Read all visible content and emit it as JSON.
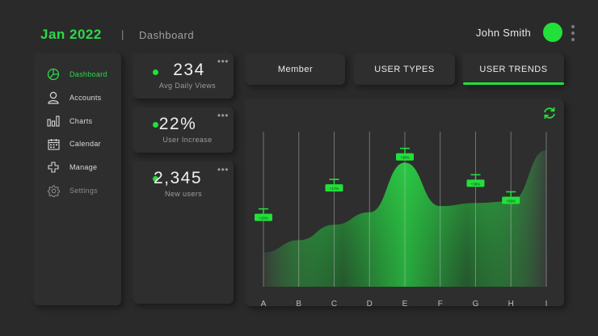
{
  "header": {
    "date": "Jan 2022",
    "separator": "|",
    "title": "Dashboard",
    "user_name": "John Smith"
  },
  "sidebar": {
    "items": [
      {
        "label": "Dashboard",
        "icon": "pie-chart-icon",
        "state": "active"
      },
      {
        "label": "Accounts",
        "icon": "user-icon",
        "state": "normal"
      },
      {
        "label": "Charts",
        "icon": "bar-chart-icon",
        "state": "normal"
      },
      {
        "label": "Calendar",
        "icon": "calendar-icon",
        "state": "normal"
      },
      {
        "label": "Manage",
        "icon": "plus-icon",
        "state": "normal"
      },
      {
        "label": "Settings",
        "icon": "gear-icon",
        "state": "muted"
      }
    ]
  },
  "stats": [
    {
      "value": "234",
      "label": "Avg Daily Views"
    },
    {
      "value": "22%",
      "label": "User Increase"
    },
    {
      "value": "2,345",
      "label": "New users"
    }
  ],
  "tabs": [
    {
      "label": "Member",
      "active": false
    },
    {
      "label": "USER TYPES",
      "active": false
    },
    {
      "label": "USER TRENDS",
      "active": true
    }
  ],
  "colors": {
    "accent": "#22e03a",
    "background": "#2a2a2a",
    "card": "#2e2e2e"
  },
  "chart_data": {
    "type": "area",
    "categories": [
      "A",
      "B",
      "C",
      "D",
      "E",
      "F",
      "G",
      "H",
      "I"
    ],
    "values": [
      22,
      30,
      40,
      48,
      80,
      52,
      54,
      55,
      88
    ],
    "markers": [
      {
        "x": "A",
        "label": "+18%",
        "y": 45
      },
      {
        "x": "C",
        "label": "+17%",
        "y": 64
      },
      {
        "x": "E",
        "label": "+38%",
        "y": 84
      },
      {
        "x": "G",
        "label": "+38%",
        "y": 67
      },
      {
        "x": "H",
        "label": "+59%",
        "y": 56
      }
    ],
    "ylim": [
      0,
      100
    ],
    "grid": "vertical",
    "refresh_icon": "refresh-icon"
  }
}
